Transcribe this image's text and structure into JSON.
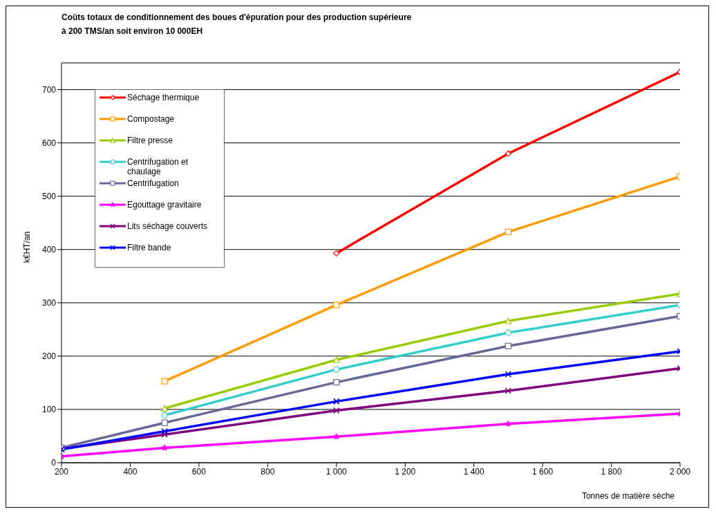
{
  "chart_data": {
    "type": "line",
    "title": "Coûts totaux de conditionnement des boues d'épuration pour des production supérieure\nà 200 TMS/an soit environ 10 000EH",
    "xlabel": "Tonnes de matière sèche",
    "ylabel": "k€HT/an",
    "x": [
      200,
      500,
      1000,
      1500,
      2000
    ],
    "series": [
      {
        "name": "Séchage thermique",
        "color": "#ff0000",
        "marker": "diamond",
        "values": [
          null,
          null,
          393,
          580,
          733
        ]
      },
      {
        "name": "Compostage",
        "color": "#ff9900",
        "marker": "square",
        "values": [
          null,
          153,
          296,
          433,
          537
        ]
      },
      {
        "name": "Filtre presse",
        "color": "#99cc00",
        "marker": "triangle",
        "values": [
          null,
          102,
          193,
          266,
          317
        ]
      },
      {
        "name": "Centrifugation et chaulage",
        "color": "#33cccc",
        "marker": "circle",
        "values": [
          null,
          89,
          175,
          244,
          296
        ]
      },
      {
        "name": "Centrifugation",
        "color": "#666699",
        "marker": "square",
        "values": [
          28,
          75,
          151,
          219,
          275
        ]
      },
      {
        "name": "Egouttage gravitaire",
        "color": "#ff00ff",
        "marker": "star",
        "values": [
          12,
          28,
          49,
          73,
          92
        ]
      },
      {
        "name": "Lits séchage couverts",
        "color": "#800080",
        "marker": "cross",
        "values": [
          26,
          53,
          98,
          135,
          177
        ]
      },
      {
        "name": "Filtre bande",
        "color": "#0000ff",
        "marker": "cross",
        "values": [
          25,
          59,
          115,
          166,
          209
        ]
      }
    ],
    "xlim": [
      200,
      2000
    ],
    "xticks": [
      200,
      400,
      600,
      800,
      {
        "value": 1000,
        "label": "1 000"
      },
      {
        "value": 1200,
        "label": "1 200"
      },
      {
        "value": 1400,
        "label": "1 400"
      },
      {
        "value": 1600,
        "label": "1 600"
      },
      {
        "value": 1800,
        "label": "1 800"
      },
      {
        "value": 2000,
        "label": "2 000"
      }
    ],
    "ylim": [
      0,
      750
    ],
    "yticks": [
      0,
      100,
      200,
      300,
      400,
      500,
      600,
      700
    ],
    "grid": "y",
    "legend": "top left",
    "line_style": "solid"
  }
}
